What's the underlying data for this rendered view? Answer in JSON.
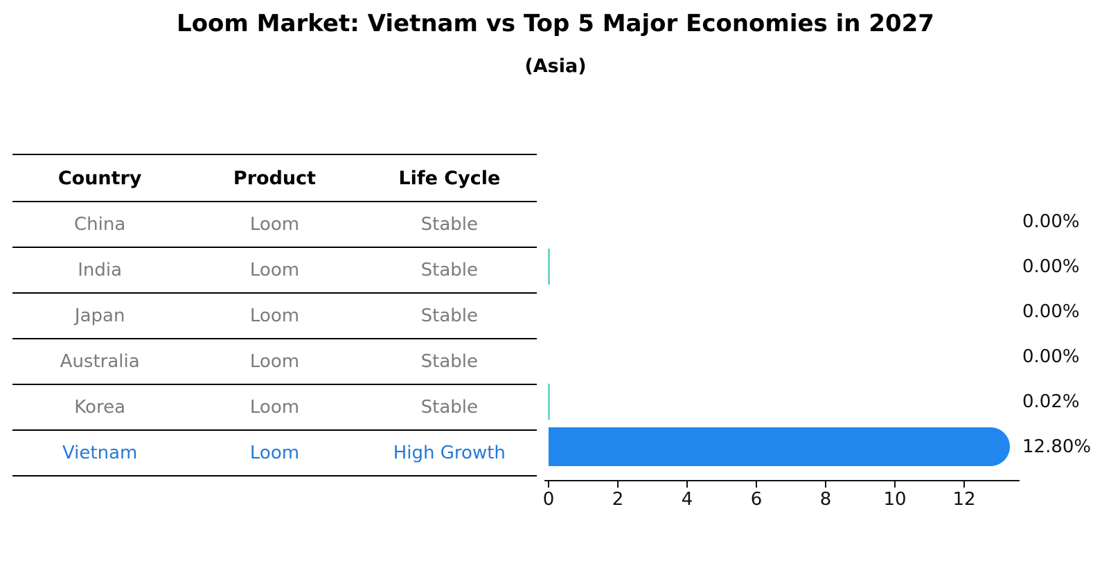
{
  "title": "Loom Market: Vietnam vs Top 5 Major Economies in 2027",
  "subtitle": "(Asia)",
  "table": {
    "columns": [
      "Country",
      "Product",
      "Life Cycle"
    ],
    "rows": [
      {
        "country": "China",
        "product": "Loom",
        "life_cycle": "Stable",
        "highlight": false
      },
      {
        "country": "India",
        "product": "Loom",
        "life_cycle": "Stable",
        "highlight": false
      },
      {
        "country": "Japan",
        "product": "Loom",
        "life_cycle": "Stable",
        "highlight": false
      },
      {
        "country": "Australia",
        "product": "Loom",
        "life_cycle": "Stable",
        "highlight": false
      },
      {
        "country": "Korea",
        "product": "Loom",
        "life_cycle": "Stable",
        "highlight": false
      },
      {
        "country": "Vietnam",
        "product": "Loom",
        "life_cycle": "High Growth",
        "highlight": true
      }
    ]
  },
  "chart_data": {
    "type": "bar",
    "orientation": "horizontal",
    "title": "Loom Market: Vietnam vs Top 5 Major Economies in 2027",
    "subtitle": "(Asia)",
    "categories": [
      "China",
      "India",
      "Japan",
      "Australia",
      "Korea",
      "Vietnam"
    ],
    "values": [
      0,
      0.004,
      0,
      0,
      0.02,
      12.8
    ],
    "value_labels": [
      "0.00%",
      "0.00%",
      "0.00%",
      "0.00%",
      "0.02%",
      "12.80%"
    ],
    "xlabel": "",
    "ylabel": "",
    "xlim": [
      0,
      13.5
    ],
    "x_ticks": [
      0,
      2,
      4,
      6,
      8,
      10,
      12
    ],
    "grid": false,
    "legend": "none",
    "colors": {
      "highlight_bar": "#2187ee",
      "tiny_bar": "#72d4ca",
      "highlight_text": "#2679d6",
      "row_text": "#7b7b7b",
      "axis": "#111111"
    }
  }
}
